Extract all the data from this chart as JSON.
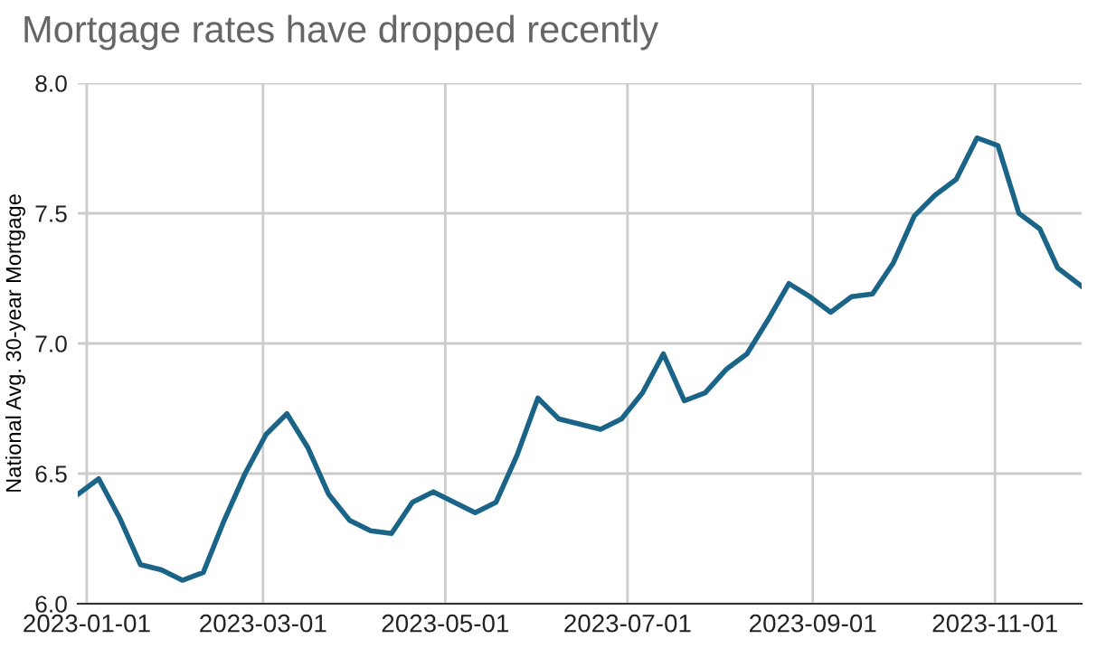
{
  "chart_data": {
    "type": "line",
    "title": "Mortgage rates have dropped recently",
    "ylabel": "National Avg. 30-year Mortgage",
    "x": [
      "2022-12-29",
      "2023-01-05",
      "2023-01-12",
      "2023-01-19",
      "2023-01-26",
      "2023-02-02",
      "2023-02-09",
      "2023-02-16",
      "2023-02-23",
      "2023-03-02",
      "2023-03-09",
      "2023-03-16",
      "2023-03-23",
      "2023-03-30",
      "2023-04-06",
      "2023-04-13",
      "2023-04-20",
      "2023-04-27",
      "2023-05-04",
      "2023-05-11",
      "2023-05-18",
      "2023-05-25",
      "2023-06-01",
      "2023-06-08",
      "2023-06-15",
      "2023-06-22",
      "2023-06-29",
      "2023-07-06",
      "2023-07-13",
      "2023-07-20",
      "2023-07-27",
      "2023-08-03",
      "2023-08-10",
      "2023-08-17",
      "2023-08-24",
      "2023-08-31",
      "2023-09-07",
      "2023-09-14",
      "2023-09-21",
      "2023-09-28",
      "2023-10-05",
      "2023-10-12",
      "2023-10-19",
      "2023-10-26",
      "2023-11-02",
      "2023-11-09",
      "2023-11-16",
      "2023-11-22",
      "2023-11-30"
    ],
    "series": [
      {
        "color": "#1a6488",
        "values": [
          6.42,
          6.48,
          6.33,
          6.15,
          6.13,
          6.09,
          6.12,
          6.32,
          6.5,
          6.65,
          6.73,
          6.6,
          6.42,
          6.32,
          6.28,
          6.27,
          6.39,
          6.43,
          6.39,
          6.35,
          6.39,
          6.57,
          6.79,
          6.71,
          6.69,
          6.67,
          6.71,
          6.81,
          6.96,
          6.78,
          6.81,
          6.9,
          6.96,
          7.09,
          7.23,
          7.18,
          7.12,
          7.18,
          7.19,
          7.31,
          7.49,
          7.57,
          7.63,
          7.79,
          7.76,
          7.5,
          7.44,
          7.29,
          7.22
        ]
      }
    ],
    "xlim": [
      "2022-12-29",
      "2023-11-30"
    ],
    "xticks": [
      {
        "value": "2023-01-01",
        "label": "2023-01-01"
      },
      {
        "value": "2023-03-01",
        "label": "2023-03-01"
      },
      {
        "value": "2023-05-01",
        "label": "2023-05-01"
      },
      {
        "value": "2023-07-01",
        "label": "2023-07-01"
      },
      {
        "value": "2023-09-01",
        "label": "2023-09-01"
      },
      {
        "value": "2023-11-01",
        "label": "2023-11-01"
      }
    ],
    "ylim": [
      6.0,
      8.0
    ],
    "yticks": [
      {
        "value": 6.0,
        "label": "6.0"
      },
      {
        "value": 6.5,
        "label": "6.5"
      },
      {
        "value": 7.0,
        "label": "7.0"
      },
      {
        "value": 7.5,
        "label": "7.5"
      },
      {
        "value": 8.0,
        "label": "8.0"
      }
    ],
    "grid": true,
    "line_style": "solid",
    "marker": "none"
  }
}
